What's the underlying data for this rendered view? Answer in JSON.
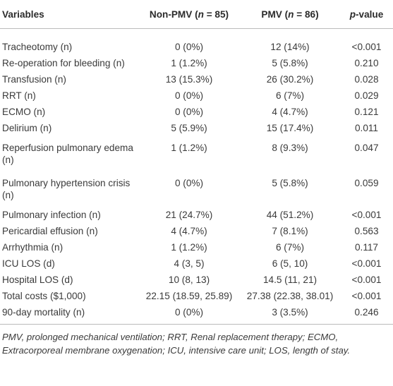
{
  "table": {
    "header": [
      [
        {
          "text": "Variables"
        }
      ],
      [
        {
          "text": "Non-PMV ("
        },
        {
          "text": "n",
          "italic": true
        },
        {
          "text": " = 85)"
        }
      ],
      [
        {
          "text": "PMV ("
        },
        {
          "text": "n",
          "italic": true
        },
        {
          "text": " = 86)"
        }
      ],
      [
        {
          "text": "p",
          "italic": true
        },
        {
          "text": "-value"
        }
      ]
    ],
    "rows": [
      [
        "Tracheotomy (n)",
        "0 (0%)",
        "12 (14%)",
        "<0.001"
      ],
      [
        "Re-operation for bleeding (n)",
        "1 (1.2%)",
        "5 (5.8%)",
        "0.210"
      ],
      [
        "Transfusion (n)",
        "13 (15.3%)",
        "26 (30.2%)",
        "0.028"
      ],
      [
        "RRT (n)",
        "0 (0%)",
        "6 (7%)",
        "0.029"
      ],
      [
        "ECMO (n)",
        "0 (0%)",
        "4 (4.7%)",
        "0.121"
      ],
      [
        "Delirium (n)",
        "5 (5.9%)",
        "15 (17.4%)",
        "0.011"
      ],
      [
        "Reperfusion pulmonary edema (n)",
        "1 (1.2%)",
        "8 (9.3%)",
        "0.047"
      ],
      [
        "Pulmonary hypertension crisis (n)",
        "0 (0%)",
        "5 (5.8%)",
        "0.059"
      ],
      [
        "Pulmonary infection (n)",
        "21 (24.7%)",
        "44 (51.2%)",
        "<0.001"
      ],
      [
        "Pericardial effusion (n)",
        "4 (4.7%)",
        "7 (8.1%)",
        "0.563"
      ],
      [
        "Arrhythmia (n)",
        "1 (1.2%)",
        "6 (7%)",
        "0.117"
      ],
      [
        "ICU LOS (d)",
        "4 (3, 5)",
        "6 (5, 10)",
        "<0.001"
      ],
      [
        "Hospital LOS (d)",
        "10 (8, 13)",
        "14.5 (11, 21)",
        "<0.001"
      ],
      [
        "Total costs ($1,000)",
        "22.15 (18.59, 25.89)",
        "27.38 (22.38, 38.01)",
        "<0.001"
      ],
      [
        "90-day mortality (n)",
        "0 (0%)",
        "3 (3.5%)",
        "0.246"
      ]
    ],
    "footnote": "PMV, prolonged mechanical ventilation; RRT, Renal replacement therapy; ECMO, Extracorporeal membrane oxygenation; ICU, intensive care unit; LOS, length of stay."
  }
}
